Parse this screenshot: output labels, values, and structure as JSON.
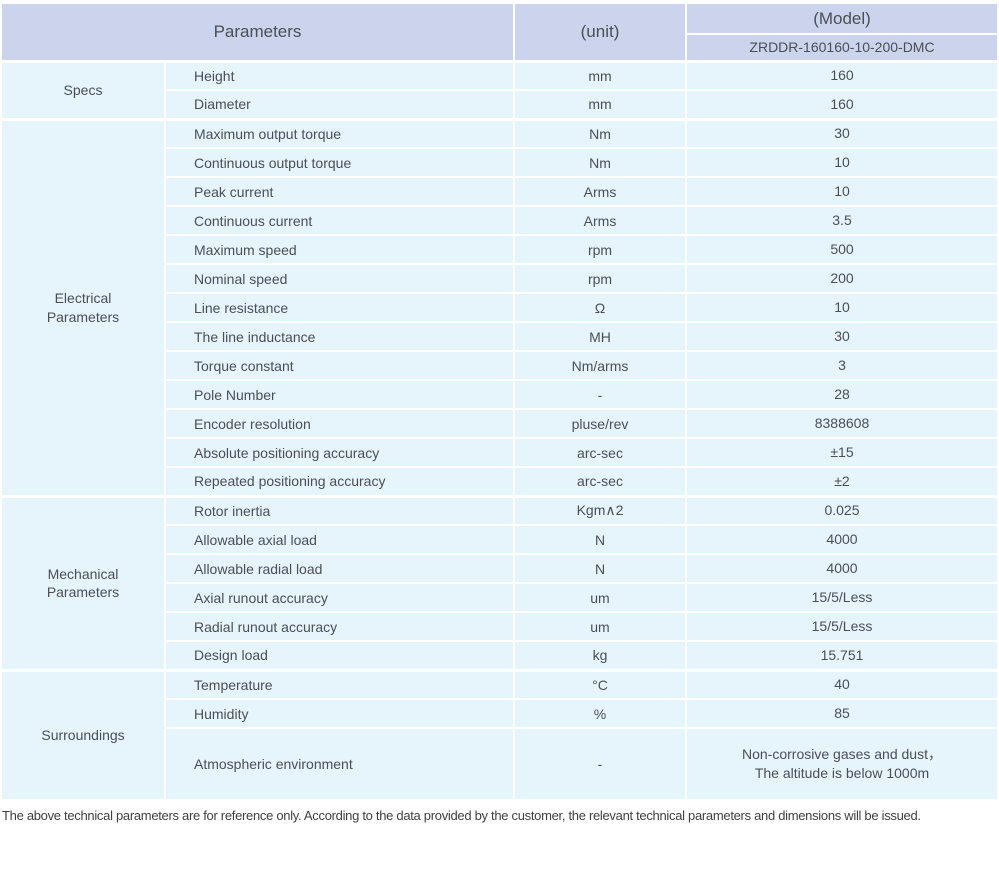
{
  "table": {
    "header": {
      "parameters_label": "Parameters",
      "unit_label": "(unit)",
      "model_label": "(Model)",
      "model_value": "ZRDDR-160160-10-200-DMC"
    },
    "groups": [
      {
        "name": "Specs",
        "rows": [
          {
            "param": "Height",
            "unit": "mm",
            "value": "160"
          },
          {
            "param": "Diameter",
            "unit": "mm",
            "value": "160"
          }
        ]
      },
      {
        "name": "Electrical Parameters",
        "rows": [
          {
            "param": "Maximum output torque",
            "unit": "Nm",
            "value": "30"
          },
          {
            "param": "Continuous output torque",
            "unit": "Nm",
            "value": "10"
          },
          {
            "param": "Peak current",
            "unit": "Arms",
            "value": "10"
          },
          {
            "param": "Continuous current",
            "unit": "Arms",
            "value": "3.5"
          },
          {
            "param": "Maximum speed",
            "unit": "rpm",
            "value": "500"
          },
          {
            "param": "Nominal speed",
            "unit": "rpm",
            "value": "200"
          },
          {
            "param": "Line resistance",
            "unit": "Ω",
            "value": "10"
          },
          {
            "param": "The line inductance",
            "unit": "MH",
            "value": "30"
          },
          {
            "param": "Torque constant",
            "unit": "Nm/arms",
            "value": "3"
          },
          {
            "param": "Pole Number",
            "unit": "-",
            "value": "28"
          },
          {
            "param": "Encoder resolution",
            "unit": "pluse/rev",
            "value": "8388608"
          },
          {
            "param": "Absolute positioning accuracy",
            "unit": "arc-sec",
            "value": "±15"
          },
          {
            "param": "Repeated positioning accuracy",
            "unit": "arc-sec",
            "value": "±2"
          }
        ]
      },
      {
        "name": "Mechanical Parameters",
        "rows": [
          {
            "param": "Rotor inertia",
            "unit": "Kgm∧2",
            "value": "0.025"
          },
          {
            "param": "Allowable axial load",
            "unit": "N",
            "value": "4000"
          },
          {
            "param": "Allowable radial load",
            "unit": "N",
            "value": "4000"
          },
          {
            "param": "Axial runout accuracy",
            "unit": "um",
            "value": "15/5/Less"
          },
          {
            "param": "Radial runout accuracy",
            "unit": "um",
            "value": "15/5/Less"
          },
          {
            "param": "Design load",
            "unit": "kg",
            "value": "15.751"
          }
        ]
      },
      {
        "name": "Surroundings",
        "rows": [
          {
            "param": "Temperature",
            "unit": "°C",
            "value": "40"
          },
          {
            "param": "Humidity",
            "unit": "%",
            "value": "85"
          },
          {
            "param": "Atmospheric environment",
            "unit": "-",
            "value": "Non-corrosive gases and dust，\nThe altitude is below 1000m",
            "tall": true
          }
        ]
      }
    ]
  },
  "footer": {
    "note": "The above technical parameters are for reference only. According to the data provided by the customer, the relevant technical parameters and dimensions will be issued."
  },
  "colors": {
    "header_bg": "#cbd4ec",
    "body_bg": "#e6f4fc",
    "border": "#ffffff",
    "text": "#4b4f55"
  }
}
